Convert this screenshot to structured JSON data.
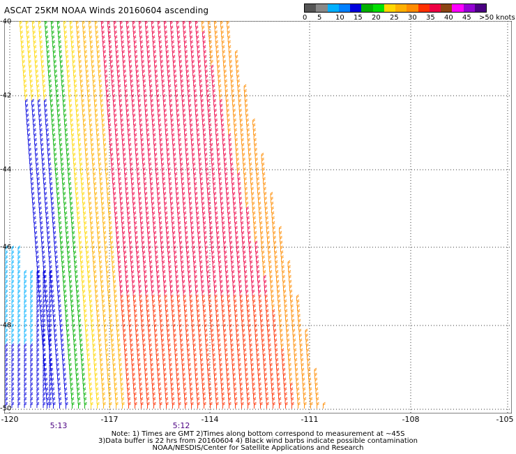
{
  "title": "ASCAT 25KM NOAA Winds 20160604 ascending",
  "legend": {
    "colors": [
      "#555555",
      "#888888",
      "#00b0ff",
      "#0080ff",
      "#0000dd",
      "#00b000",
      "#00e000",
      "#ffd700",
      "#ffb000",
      "#ff8c00",
      "#ff3000",
      "#ee0044",
      "#8b4513",
      "#ff00ff",
      "#9400d3",
      "#4b0082"
    ],
    "labels": [
      "0",
      "5",
      "10",
      "15",
      "20",
      "25",
      "30",
      "35",
      "40",
      "45",
      ">50 knots"
    ],
    "unit": "knots"
  },
  "axes": {
    "y_ticks": [
      "-40",
      "-42",
      "-44",
      "-46",
      "-48",
      "-50"
    ],
    "x_ticks": [
      "-120",
      "-117",
      "-114",
      "-111",
      "-108",
      "-105"
    ],
    "lat_range": [
      -50,
      -40
    ],
    "lon_range": [
      -120,
      -105
    ]
  },
  "times": [
    "5:13",
    "5:12"
  ],
  "notes": [
    "Note: 1) Times are GMT 2)Times along bottom correspond to measurement at ~45S",
    "3)Data buffer is 22 hrs from 20160604 4) Black wind barbs indicate possible contamination",
    "NOAA/NESDIS/Center for Satellite Applications and Research"
  ]
}
